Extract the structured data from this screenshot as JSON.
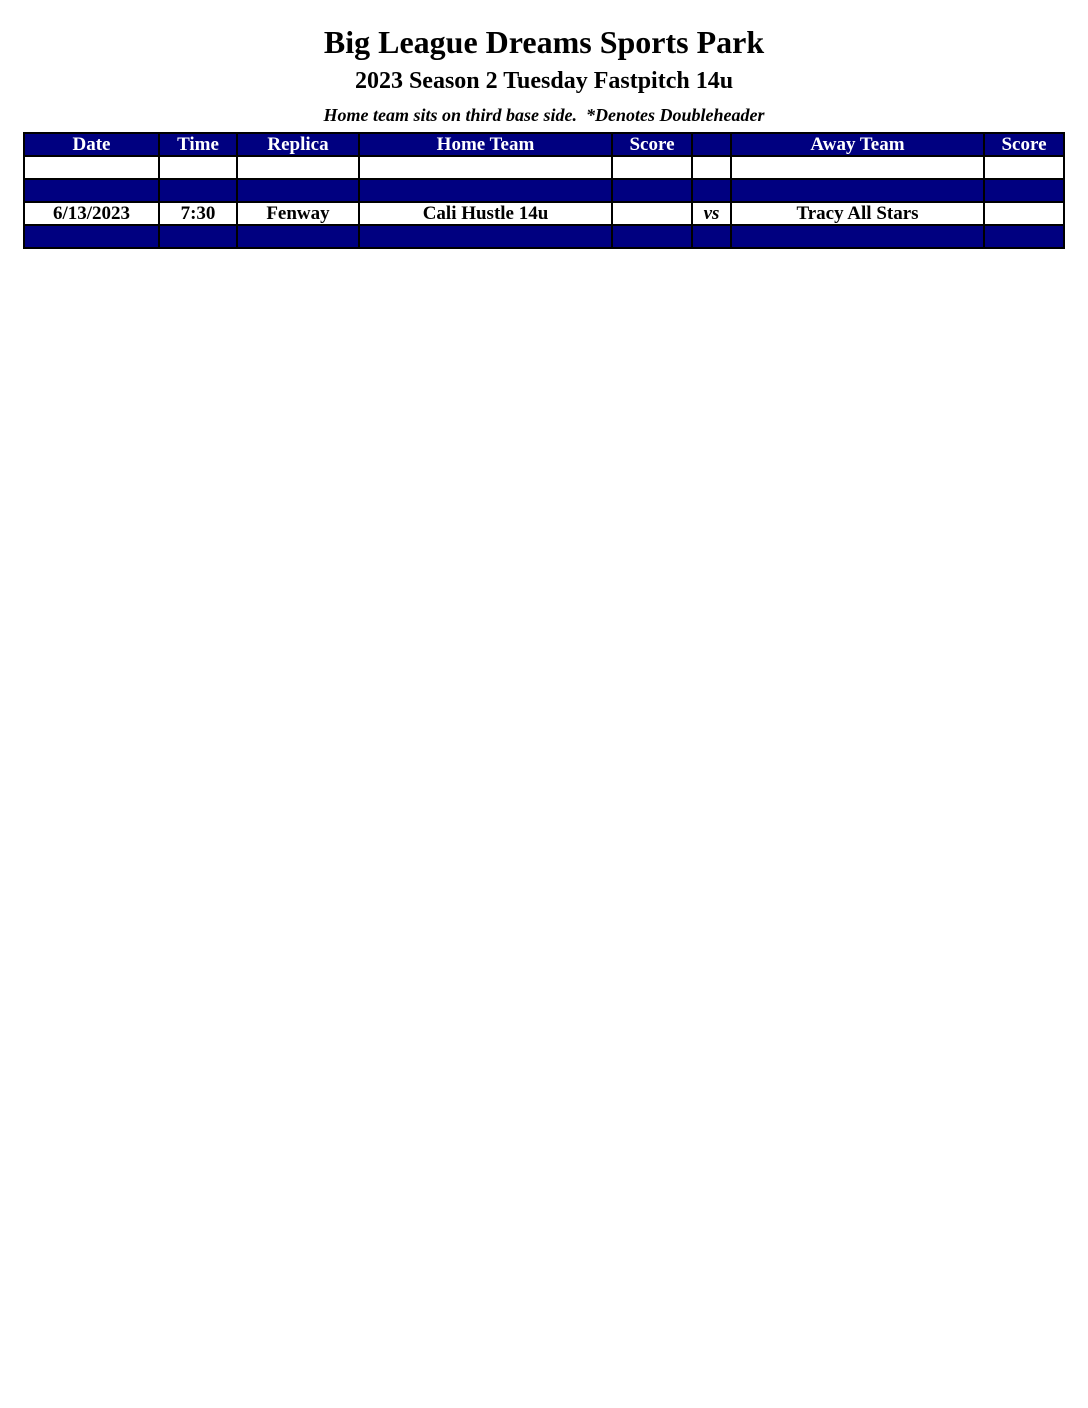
{
  "title": "Big League Dreams Sports Park",
  "subtitle": "2023 Season 2 Tuesday Fastpitch 14u",
  "note": "Home team sits on third base side.  *Denotes Doubleheader",
  "colors": {
    "header_bg": "#000080",
    "header_text": "#ffffff"
  },
  "columns": [
    "Date",
    "Time",
    "Replica",
    "Home Team",
    "Score",
    "",
    "Away Team",
    "Score"
  ],
  "rows": [
    {
      "style": "white",
      "cells": [
        "",
        "",
        "",
        "",
        "",
        "",
        "",
        ""
      ]
    },
    {
      "style": "blue",
      "cells": [
        "",
        "",
        "",
        "",
        "",
        "",
        "",
        ""
      ]
    },
    {
      "style": "white",
      "cells": [
        "6/13/2023",
        "7:30",
        "Fenway",
        "Cali Hustle 14u",
        "",
        "vs",
        "Tracy All Stars",
        ""
      ]
    },
    {
      "style": "blue",
      "cells": [
        "",
        "",
        "",
        "",
        "",
        "",
        "",
        ""
      ]
    }
  ]
}
